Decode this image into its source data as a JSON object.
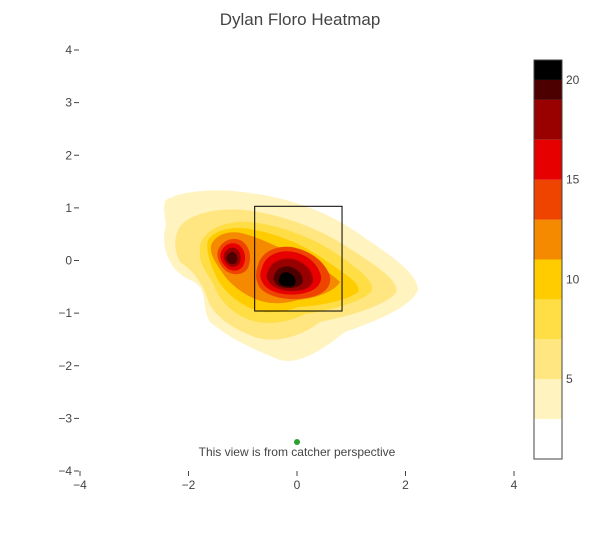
{
  "chart_data": {
    "type": "heatmap",
    "title": "Dylan Floro Heatmap",
    "xlabel": "",
    "ylabel": "",
    "xlim": [
      -4,
      4
    ],
    "ylim": [
      -4,
      4
    ],
    "x_ticks": [
      "−4",
      "−2",
      "0",
      "2",
      "4"
    ],
    "y_ticks": [
      "4",
      "3",
      "2",
      "1",
      "0",
      "−1",
      "−2",
      "−3",
      "−4"
    ],
    "grid": false,
    "strike_zone": {
      "x": [
        -0.78,
        0.83
      ],
      "y": [
        -0.96,
        1.03
      ]
    },
    "hotspots": [
      {
        "x": -0.22,
        "y": -0.38,
        "peak": 21
      },
      {
        "x": -1.22,
        "y": 0.05,
        "peak": 17
      }
    ],
    "marker": {
      "x": 0.0,
      "y": -3.45,
      "color": "#2ca02c"
    },
    "annotation": "This view is from catcher perspective",
    "colorbar": {
      "range": [
        1,
        21
      ],
      "ticks": [
        "5",
        "10",
        "15",
        "20"
      ],
      "tick_values": [
        5,
        10,
        15,
        20
      ],
      "levels": [
        {
          "from": 1,
          "to": 3,
          "color": "#ffffff"
        },
        {
          "from": 3,
          "to": 5,
          "color": "#fff3c0"
        },
        {
          "from": 5,
          "to": 7,
          "color": "#ffe680"
        },
        {
          "from": 7,
          "to": 9,
          "color": "#ffdd44"
        },
        {
          "from": 9,
          "to": 11,
          "color": "#ffcc00"
        },
        {
          "from": 11,
          "to": 13,
          "color": "#f58a00"
        },
        {
          "from": 13,
          "to": 15,
          "color": "#ee4400"
        },
        {
          "from": 15,
          "to": 17,
          "color": "#e60000"
        },
        {
          "from": 17,
          "to": 19,
          "color": "#990000"
        },
        {
          "from": 19,
          "to": 20,
          "color": "#4d0000"
        },
        {
          "from": 20,
          "to": 21,
          "color": "#000000"
        }
      ]
    }
  }
}
